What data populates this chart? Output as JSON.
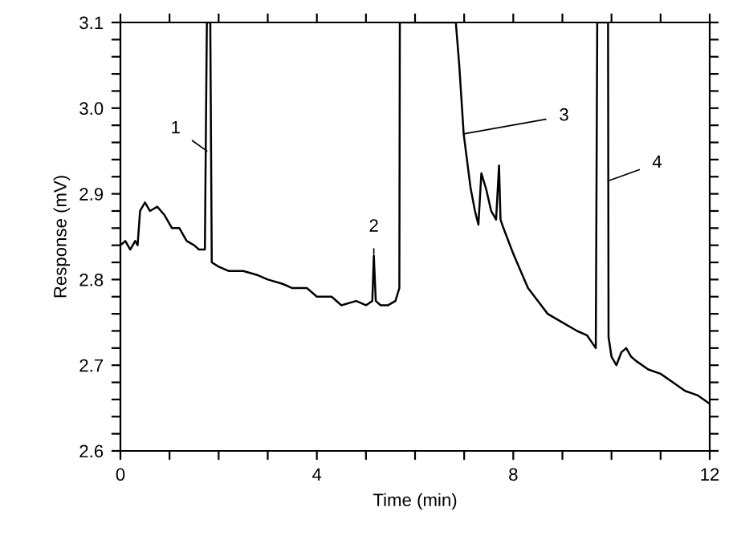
{
  "chart_data": {
    "type": "line",
    "xlabel": "Time (min)",
    "ylabel": "Response (mV)",
    "xlim": [
      0,
      12
    ],
    "ylim": [
      2.6,
      3.1
    ],
    "xticks": [
      0,
      {
        "value": 1,
        "label": null
      },
      {
        "value": 2,
        "label": null
      },
      {
        "value": 3,
        "label": null
      },
      4,
      {
        "value": 5,
        "label": null
      },
      {
        "value": 6,
        "label": null
      },
      {
        "value": 7,
        "label": null
      },
      8,
      {
        "value": 9,
        "label": null
      },
      {
        "value": 10,
        "label": null
      },
      {
        "value": 11,
        "label": null
      },
      12
    ],
    "yticks": [
      2.6,
      {
        "value": 2.62,
        "label": null
      },
      {
        "value": 2.64,
        "label": null
      },
      {
        "value": 2.66,
        "label": null
      },
      {
        "value": 2.68,
        "label": null
      },
      2.7,
      {
        "value": 2.72,
        "label": null
      },
      {
        "value": 2.74,
        "label": null
      },
      {
        "value": 2.76,
        "label": null
      },
      {
        "value": 2.78,
        "label": null
      },
      2.8,
      {
        "value": 2.82,
        "label": null
      },
      {
        "value": 2.84,
        "label": null
      },
      {
        "value": 2.86,
        "label": null
      },
      {
        "value": 2.88,
        "label": null
      },
      2.9,
      {
        "value": 2.92,
        "label": null
      },
      {
        "value": 2.94,
        "label": null
      },
      {
        "value": 2.96,
        "label": null
      },
      {
        "value": 2.98,
        "label": null
      },
      {
        "value": 3.0,
        "label": "3.0"
      },
      {
        "value": 3.02,
        "label": null
      },
      {
        "value": 3.04,
        "label": null
      },
      {
        "value": 3.06,
        "label": null
      },
      {
        "value": 3.08,
        "label": null
      },
      3.1
    ],
    "grid": false,
    "marker": "none",
    "line_style": "solid",
    "x": [
      0,
      0.1,
      0.2,
      0.3,
      0.35,
      0.4,
      0.5,
      0.6,
      0.75,
      0.9,
      1.05,
      1.2,
      1.35,
      1.5,
      1.6,
      1.72,
      1.76,
      1.83,
      1.86,
      2.0,
      2.2,
      2.5,
      2.8,
      3.0,
      3.3,
      3.5,
      3.8,
      4.0,
      4.3,
      4.5,
      4.8,
      5.0,
      5.13,
      5.16,
      5.2,
      5.3,
      5.45,
      5.6,
      5.68,
      5.69,
      6.83,
      6.9,
      6.99,
      7.13,
      7.22,
      7.29,
      7.35,
      7.45,
      7.55,
      7.65,
      7.71,
      7.74,
      7.8,
      8.0,
      8.15,
      8.3,
      8.5,
      8.7,
      9.0,
      9.3,
      9.5,
      9.68,
      9.71,
      9.93,
      9.94,
      10.0,
      10.1,
      10.2,
      10.3,
      10.4,
      10.5,
      10.75,
      11.0,
      11.25,
      11.5,
      11.75,
      12.0
    ],
    "series": [
      {
        "color": "#000000",
        "values": [
          2.84,
          2.845,
          2.835,
          2.845,
          2.84,
          2.88,
          2.89,
          2.88,
          2.885,
          2.875,
          2.86,
          2.86,
          2.845,
          2.84,
          2.835,
          2.835,
          3.1,
          3.1,
          2.82,
          2.815,
          2.81,
          2.81,
          2.805,
          2.8,
          2.795,
          2.79,
          2.79,
          2.78,
          2.78,
          2.77,
          2.775,
          2.77,
          2.775,
          2.828,
          2.775,
          2.77,
          2.77,
          2.775,
          2.79,
          3.1,
          3.1,
          3.05,
          2.97,
          2.907,
          2.88,
          2.864,
          2.924,
          2.905,
          2.88,
          2.87,
          2.933,
          2.87,
          2.86,
          2.83,
          2.81,
          2.79,
          2.775,
          2.76,
          2.75,
          2.74,
          2.735,
          2.72,
          3.1,
          3.1,
          2.733,
          2.71,
          2.7,
          2.715,
          2.72,
          2.71,
          2.705,
          2.695,
          2.69,
          2.68,
          2.67,
          2.665,
          2.655
        ]
      }
    ],
    "annotations": [
      {
        "text": "1",
        "x": 1.76,
        "y": 2.95
      },
      {
        "text": "2",
        "x": 5.16,
        "y": 2.83
      },
      {
        "text": "3",
        "x": 6.99,
        "y": 2.97
      },
      {
        "text": "4",
        "x": 9.93,
        "y": 2.915
      }
    ]
  }
}
